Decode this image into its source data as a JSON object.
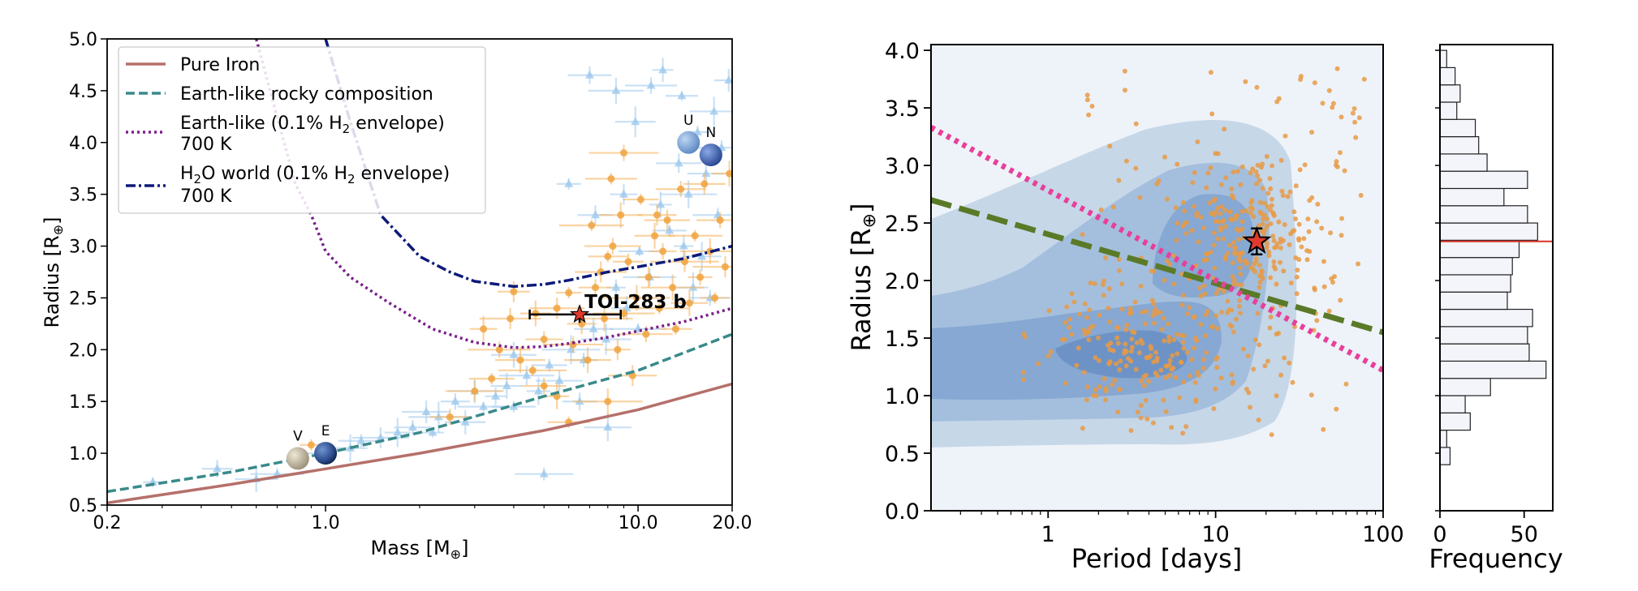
{
  "chart_data": [
    {
      "type": "scatter",
      "title": "",
      "xlabel": "Mass [M",
      "xlabel_sub": "⊕",
      "ylabel": "Radius [R",
      "ylabel_sub": "⊕",
      "xscale": "log",
      "xlim": [
        0.2,
        20.0
      ],
      "ylim": [
        0.5,
        5.0
      ],
      "xticks": [
        {
          "v": 0.2,
          "label": "0.2"
        },
        {
          "v": 1.0,
          "label": "1.0"
        },
        {
          "v": 10.0,
          "label": "10.0"
        },
        {
          "v": 20.0,
          "label": "20.0"
        }
      ],
      "yticks": [
        {
          "v": 0.5,
          "label": "0.5"
        },
        {
          "v": 1.0,
          "label": "1.0"
        },
        {
          "v": 1.5,
          "label": "1.5"
        },
        {
          "v": 2.0,
          "label": "2.0"
        },
        {
          "v": 2.5,
          "label": "2.5"
        },
        {
          "v": 3.0,
          "label": "3.0"
        },
        {
          "v": 3.5,
          "label": "3.5"
        },
        {
          "v": 4.0,
          "label": "4.0"
        },
        {
          "v": 4.5,
          "label": "4.5"
        },
        {
          "v": 5.0,
          "label": "5.0"
        }
      ],
      "legend_position": "top-left",
      "legend": [
        {
          "label": "Pure Iron",
          "style": "solid",
          "color": "#b5706a"
        },
        {
          "label": "Earth-like rocky composition",
          "style": "dashed",
          "color": "#3a8a8a"
        },
        {
          "label": "Earth-like (0.1% H",
          "sub": "2",
          "tail": " envelope)",
          "line2": "700 K",
          "style": "dotted",
          "color": "#7b1f8a"
        },
        {
          "label": "H",
          "sub": "2",
          "tail": "O world (0.1% H",
          "sub2": "2",
          "tail2": " envelope)",
          "line2": "700 K",
          "style": "dashdot",
          "color": "#0d1a7a"
        }
      ],
      "curves": [
        {
          "name": "Pure Iron",
          "x": [
            0.2,
            0.5,
            1.0,
            2.0,
            5.0,
            10.0,
            20.0
          ],
          "y": [
            0.52,
            0.7,
            0.85,
            1.0,
            1.22,
            1.42,
            1.67
          ]
        },
        {
          "name": "Earth-like rocky composition",
          "x": [
            0.2,
            0.5,
            1.0,
            2.0,
            5.0,
            10.0,
            20.0
          ],
          "y": [
            0.63,
            0.82,
            1.0,
            1.2,
            1.55,
            1.8,
            2.15
          ]
        },
        {
          "name": "Earth-like (0.1% H2 envelope) 700 K",
          "x": [
            0.6,
            0.8,
            0.9,
            1.0,
            1.2,
            1.6,
            2.2,
            3.0,
            4.0,
            5.0,
            6.0,
            8.0,
            10.0,
            14.0,
            20.0
          ],
          "y": [
            5.0,
            3.6,
            3.3,
            2.95,
            2.7,
            2.45,
            2.2,
            2.07,
            2.02,
            2.03,
            2.06,
            2.12,
            2.18,
            2.27,
            2.4
          ]
        },
        {
          "name": "H2O world (0.1% H2 envelope) 700 K",
          "x": [
            1.0,
            1.2,
            1.5,
            2.0,
            2.5,
            3.0,
            4.0,
            5.0,
            6.0,
            8.0,
            10.0,
            14.0,
            20.0
          ],
          "y": [
            5.0,
            4.2,
            3.3,
            2.9,
            2.75,
            2.66,
            2.61,
            2.63,
            2.67,
            2.75,
            2.8,
            2.88,
            3.0
          ]
        }
      ],
      "toi_283b": {
        "label": "TOI-283 b",
        "mass": 6.5,
        "mass_err": [
          2.0,
          2.3
        ],
        "radius": 2.34,
        "radius_err": 0.08
      },
      "solar_system": [
        {
          "label": "V",
          "mass": 0.815,
          "radius": 0.95,
          "color": "#c9bfa4"
        },
        {
          "label": "E",
          "mass": 1.0,
          "radius": 1.0,
          "color": "#3a5fa6"
        },
        {
          "label": "U",
          "mass": 14.5,
          "radius": 4.0,
          "color": "#7fa8d8"
        },
        {
          "label": "N",
          "mass": 17.1,
          "radius": 3.88,
          "color": "#4a6fc0"
        }
      ],
      "orange_points": [
        [
          0.9,
          1.08
        ],
        [
          2.5,
          1.35
        ],
        [
          3.0,
          1.6
        ],
        [
          3.2,
          2.2
        ],
        [
          3.4,
          1.72
        ],
        [
          3.6,
          2.0
        ],
        [
          4.0,
          2.56
        ],
        [
          4.2,
          1.9
        ],
        [
          4.6,
          1.8
        ],
        [
          5.0,
          2.1
        ],
        [
          5.5,
          2.4
        ],
        [
          5.5,
          1.55
        ],
        [
          6.0,
          1.3
        ],
        [
          6.2,
          2.05
        ],
        [
          6.6,
          2.25
        ],
        [
          6.9,
          1.9
        ],
        [
          7.1,
          3.2
        ],
        [
          7.3,
          2.6
        ],
        [
          7.6,
          2.75
        ],
        [
          8.0,
          1.5
        ],
        [
          8.0,
          2.9
        ],
        [
          8.3,
          3.0
        ],
        [
          8.6,
          2.0
        ],
        [
          8.8,
          3.3
        ],
        [
          9.0,
          2.35
        ],
        [
          9.3,
          2.85
        ],
        [
          9.6,
          1.75
        ],
        [
          9.9,
          2.5
        ],
        [
          10.2,
          3.45
        ],
        [
          10.6,
          2.15
        ],
        [
          10.8,
          2.7
        ],
        [
          11.3,
          3.1
        ],
        [
          11.7,
          2.4
        ],
        [
          12.0,
          2.95
        ],
        [
          12.4,
          3.25
        ],
        [
          12.9,
          2.6
        ],
        [
          13.2,
          2.2
        ],
        [
          13.7,
          3.55
        ],
        [
          14.1,
          2.85
        ],
        [
          14.6,
          2.45
        ],
        [
          15.2,
          3.1
        ],
        [
          15.8,
          2.7
        ],
        [
          16.3,
          3.6
        ],
        [
          17.0,
          2.95
        ],
        [
          17.6,
          2.5
        ],
        [
          18.3,
          3.25
        ],
        [
          19.0,
          2.8
        ],
        [
          19.6,
          3.7
        ],
        [
          8.2,
          3.65
        ],
        [
          9.0,
          3.9
        ],
        [
          11.5,
          3.3
        ],
        [
          7.8,
          2.3
        ],
        [
          6.0,
          2.55
        ],
        [
          5.0,
          1.65
        ],
        [
          3.9,
          2.3
        ],
        [
          4.7,
          2.35
        ]
      ],
      "blue_points": [
        [
          0.28,
          0.72
        ],
        [
          0.45,
          0.85
        ],
        [
          0.6,
          0.75
        ],
        [
          0.7,
          0.8
        ],
        [
          0.95,
          1.0
        ],
        [
          1.2,
          1.05
        ],
        [
          1.3,
          1.12
        ],
        [
          1.5,
          1.15
        ],
        [
          1.7,
          1.2
        ],
        [
          1.9,
          1.25
        ],
        [
          2.1,
          1.4
        ],
        [
          2.3,
          1.35
        ],
        [
          2.6,
          1.5
        ],
        [
          2.8,
          1.3
        ],
        [
          3.2,
          1.45
        ],
        [
          3.5,
          1.55
        ],
        [
          3.8,
          1.65
        ],
        [
          4.0,
          1.45
        ],
        [
          4.4,
          1.75
        ],
        [
          4.8,
          1.6
        ],
        [
          5.2,
          1.85
        ],
        [
          5.6,
          1.7
        ],
        [
          6.1,
          2.0
        ],
        [
          6.7,
          1.9
        ],
        [
          7.2,
          2.2
        ],
        [
          7.9,
          2.1
        ],
        [
          8.5,
          2.6
        ],
        [
          9.2,
          2.4
        ],
        [
          10.1,
          2.95
        ],
        [
          10.9,
          2.7
        ],
        [
          11.8,
          3.4
        ],
        [
          12.6,
          3.15
        ],
        [
          13.5,
          3.8
        ],
        [
          14.5,
          3.5
        ],
        [
          15.5,
          4.1
        ],
        [
          16.5,
          3.7
        ],
        [
          17.5,
          4.3
        ],
        [
          18.5,
          3.95
        ],
        [
          19.5,
          4.6
        ],
        [
          9.8,
          4.2
        ],
        [
          11.0,
          4.55
        ],
        [
          12.0,
          4.7
        ],
        [
          13.8,
          4.45
        ],
        [
          7.0,
          4.65
        ],
        [
          8.5,
          4.5
        ],
        [
          6.0,
          3.6
        ],
        [
          7.3,
          3.3
        ],
        [
          8.0,
          1.25
        ],
        [
          5.0,
          0.8
        ],
        [
          9.0,
          3.5
        ],
        [
          16.0,
          2.9
        ],
        [
          18.0,
          3.3
        ],
        [
          14.0,
          3.0
        ],
        [
          15.0,
          2.6
        ],
        [
          17.0,
          2.5
        ],
        [
          3.0,
          1.6
        ],
        [
          2.2,
          1.2
        ],
        [
          6.5,
          1.5
        ],
        [
          4.0,
          1.95
        ],
        [
          10.0,
          2.2
        ]
      ]
    },
    {
      "type": "scatter",
      "title": "",
      "xlabel": "Period [days]",
      "ylabel": "Radius [R",
      "ylabel_sub": "⊕",
      "xscale": "log",
      "xlim": [
        0.2,
        100
      ],
      "ylim": [
        0.0,
        4.05
      ],
      "xticks": [
        {
          "v": 1,
          "label": "1"
        },
        {
          "v": 10,
          "label": "10"
        },
        {
          "v": 100,
          "label": "100"
        }
      ],
      "yticks": [
        {
          "v": 0.0,
          "label": "0.0"
        },
        {
          "v": 0.5,
          "label": "0.5"
        },
        {
          "v": 1.0,
          "label": "1.0"
        },
        {
          "v": 1.5,
          "label": "1.5"
        },
        {
          "v": 2.0,
          "label": "2.0"
        },
        {
          "v": 2.5,
          "label": "2.5"
        },
        {
          "v": 3.0,
          "label": "3.0"
        },
        {
          "v": 3.5,
          "label": "3.5"
        },
        {
          "v": 4.0,
          "label": "4.0"
        }
      ],
      "green_line": {
        "color": "#5a7a28",
        "style": "dashed",
        "x": [
          0.2,
          100
        ],
        "y": [
          2.7,
          1.55
        ]
      },
      "pink_line": {
        "color": "#e83f9a",
        "style": "dotted",
        "x": [
          0.2,
          100
        ],
        "y": [
          3.33,
          1.22
        ]
      },
      "toi_283b": {
        "period": 17.6,
        "radius": 2.34
      },
      "kde_levels": [
        "#c6d7e8",
        "#a4bfdd",
        "#86a8d2",
        "#6d93c6"
      ],
      "point_seed": 7,
      "point_count": 560
    },
    {
      "type": "bar",
      "orientation": "horizontal",
      "title": "",
      "xlabel": "Frequency",
      "ylabel": "",
      "xlim": [
        0,
        67
      ],
      "ylim": [
        0.0,
        4.05
      ],
      "xticks": [
        {
          "v": 0,
          "label": "0"
        },
        {
          "v": 50,
          "label": "50"
        }
      ],
      "bin_edges": [
        0.4,
        0.55,
        0.7,
        0.85,
        1.0,
        1.15,
        1.3,
        1.45,
        1.6,
        1.75,
        1.9,
        2.05,
        2.2,
        2.35,
        2.5,
        2.65,
        2.8,
        2.95,
        3.1,
        3.25,
        3.4,
        3.55,
        3.7,
        3.85,
        4.0
      ],
      "counts": [
        6,
        4,
        18,
        15,
        30,
        63,
        53,
        52,
        55,
        40,
        42,
        43,
        47,
        58,
        52,
        38,
        52,
        28,
        23,
        21,
        10,
        12,
        9,
        4
      ],
      "marker_radius": 2.34,
      "marker_color": "#d9302a"
    }
  ]
}
